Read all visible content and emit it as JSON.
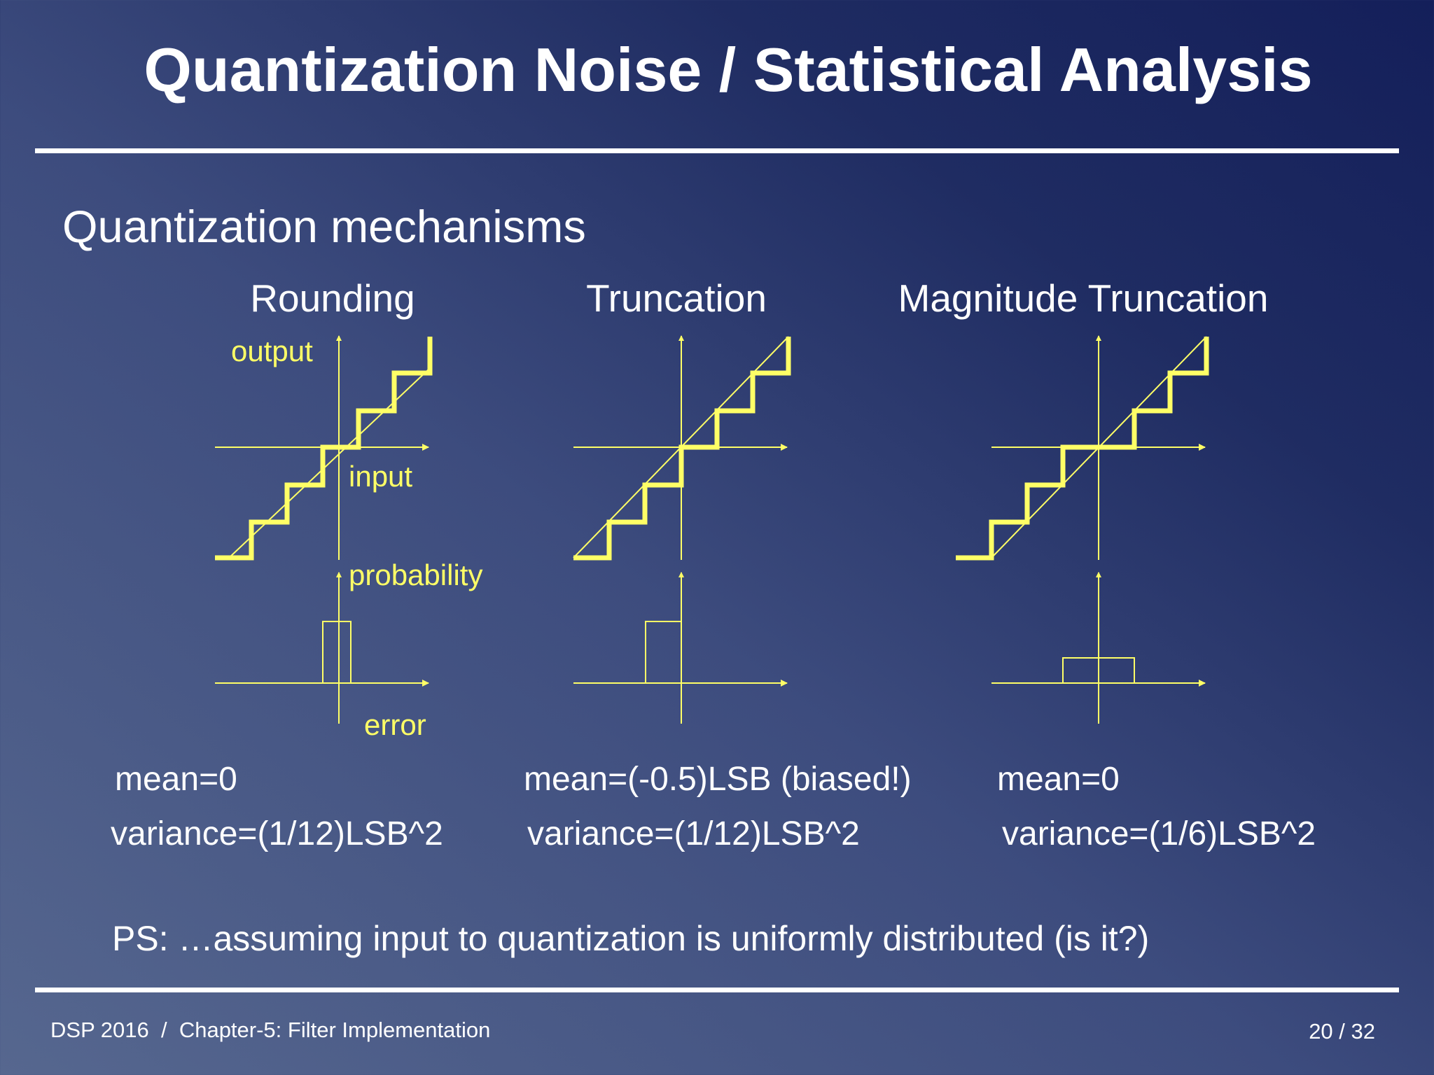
{
  "slide": {
    "title": "Quantization Noise / Statistical Analysis",
    "subtitle": "Quantization mechanisms"
  },
  "colors": {
    "diagram": "#ffff66",
    "text": "#ffffff"
  },
  "panels": [
    {
      "title": "Rounding",
      "axis_labels": {
        "output": "output",
        "input": "input",
        "probability": "probability",
        "error": "error"
      },
      "mean": "mean=0",
      "variance": "variance=(1/12)LSB^2"
    },
    {
      "title": "Truncation",
      "mean": "mean=(-0.5)LSB (biased!)",
      "variance": "variance=(1/12)LSB^2"
    },
    {
      "title": "Magnitude Truncation",
      "mean": "mean=0",
      "variance": "variance=(1/6)LSB^2"
    }
  ],
  "note": "PS: …assuming input to quantization is uniformly distributed (is it?)",
  "footer": {
    "left": "DSP 2016  /  Chapter-5: Filter Implementation",
    "right": "20 / 32"
  }
}
